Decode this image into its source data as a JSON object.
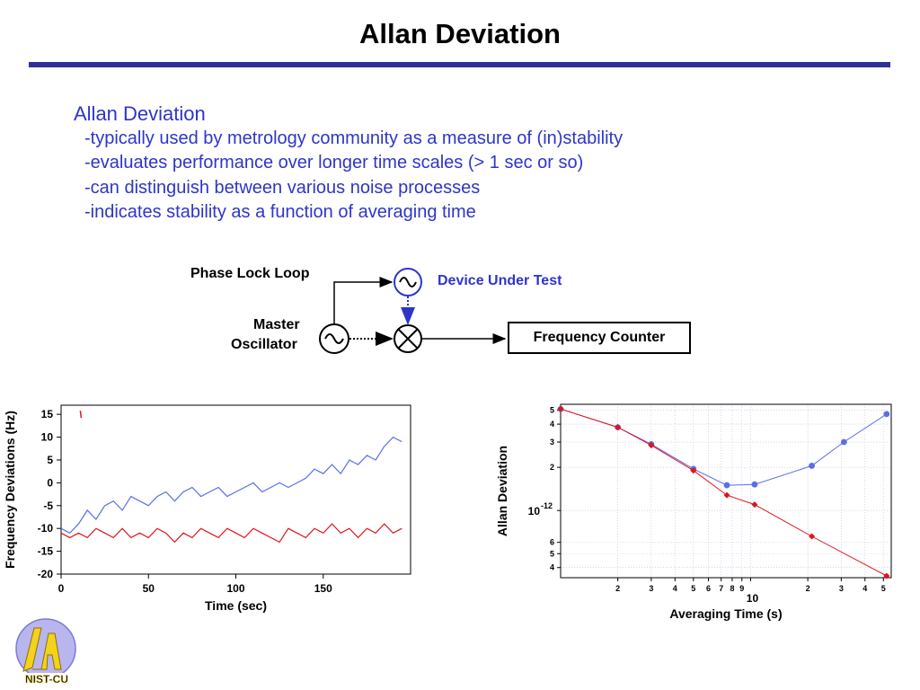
{
  "slide": {
    "title": "Allan Deviation"
  },
  "bullets": {
    "heading": "Allan Deviation",
    "items": [
      "-typically used by metrology community as a measure of (in)stability",
      "-evaluates performance over longer time scales (> 1 sec or so)",
      "-can distinguish between various noise processes",
      "-indicates stability as a function of averaging time"
    ]
  },
  "diagram": {
    "pll_label": "Phase Lock Loop",
    "dut_label": "Device Under Test",
    "master_label_line1": "Master",
    "master_label_line2": "Oscillator",
    "counter_label": "Frequency Counter"
  },
  "logo": {
    "text": "NIST-CU"
  },
  "colors": {
    "accent": "#2e3192",
    "text_blue": "#2e35c9",
    "series_blue": "#5a6fe6",
    "series_red": "#e0131b"
  },
  "chart_data": [
    {
      "type": "line",
      "title": "",
      "xlabel": "Time (sec)",
      "ylabel": "Frequency Deviations (Hz)",
      "xlim": [
        0,
        200
      ],
      "ylim": [
        -20,
        17
      ],
      "xticks": [
        0,
        50,
        100,
        150
      ],
      "yticks": [
        15,
        10,
        5,
        0,
        -5,
        -10,
        -15,
        -20
      ],
      "grid": false,
      "series": [
        {
          "color": "#5a6fe6",
          "points": [
            [
              0,
              -10
            ],
            [
              5,
              -11
            ],
            [
              10,
              -9
            ],
            [
              15,
              -6
            ],
            [
              20,
              -8
            ],
            [
              25,
              -5
            ],
            [
              30,
              -4
            ],
            [
              35,
              -6
            ],
            [
              40,
              -3
            ],
            [
              45,
              -4
            ],
            [
              50,
              -5
            ],
            [
              55,
              -3
            ],
            [
              60,
              -2
            ],
            [
              65,
              -4
            ],
            [
              70,
              -2
            ],
            [
              75,
              -1
            ],
            [
              80,
              -3
            ],
            [
              85,
              -2
            ],
            [
              90,
              -1
            ],
            [
              95,
              -3
            ],
            [
              100,
              -2
            ],
            [
              105,
              -1
            ],
            [
              110,
              0
            ],
            [
              115,
              -2
            ],
            [
              120,
              -1
            ],
            [
              125,
              0
            ],
            [
              130,
              -1
            ],
            [
              135,
              0
            ],
            [
              140,
              1
            ],
            [
              145,
              3
            ],
            [
              150,
              2
            ],
            [
              155,
              4
            ],
            [
              160,
              2
            ],
            [
              165,
              5
            ],
            [
              170,
              4
            ],
            [
              175,
              6
            ],
            [
              180,
              5
            ],
            [
              185,
              8
            ],
            [
              190,
              10
            ],
            [
              195,
              9
            ]
          ]
        },
        {
          "color": "#e0131b",
          "points": [
            [
              0,
              -11
            ],
            [
              5,
              -12
            ],
            [
              10,
              -11
            ],
            [
              15,
              -12
            ],
            [
              20,
              -10
            ],
            [
              25,
              -11
            ],
            [
              30,
              -12
            ],
            [
              35,
              -10
            ],
            [
              40,
              -12
            ],
            [
              45,
              -11
            ],
            [
              50,
              -12
            ],
            [
              55,
              -10
            ],
            [
              60,
              -11
            ],
            [
              65,
              -13
            ],
            [
              70,
              -11
            ],
            [
              75,
              -12
            ],
            [
              80,
              -10
            ],
            [
              85,
              -11
            ],
            [
              90,
              -12
            ],
            [
              95,
              -10
            ],
            [
              100,
              -11
            ],
            [
              105,
              -12
            ],
            [
              110,
              -10
            ],
            [
              115,
              -11
            ],
            [
              120,
              -12
            ],
            [
              125,
              -13
            ],
            [
              130,
              -10
            ],
            [
              135,
              -11
            ],
            [
              140,
              -12
            ],
            [
              145,
              -10
            ],
            [
              150,
              -11
            ],
            [
              155,
              -9
            ],
            [
              160,
              -11
            ],
            [
              165,
              -10
            ],
            [
              170,
              -12
            ],
            [
              175,
              -10
            ],
            [
              180,
              -11
            ],
            [
              185,
              -9
            ],
            [
              190,
              -11
            ],
            [
              195,
              -10
            ]
          ]
        }
      ],
      "annotations": [
        {
          "x": 11,
          "y": 15,
          "color": "#e0131b"
        }
      ]
    },
    {
      "type": "line",
      "title": "",
      "xlabel": "Averaging Time (s)",
      "ylabel": "Allan Deviation",
      "xscale": "log",
      "yscale": "log",
      "xlim": [
        1,
        55
      ],
      "ylim": [
        3.4e-13,
        5.5e-12
      ],
      "x_tick_labels": [
        {
          "v": 2,
          "t": "2"
        },
        {
          "v": 3,
          "t": "3"
        },
        {
          "v": 4,
          "t": "4"
        },
        {
          "v": 5,
          "t": "5"
        },
        {
          "v": 6,
          "t": "6"
        },
        {
          "v": 7,
          "t": "7"
        },
        {
          "v": 8,
          "t": "8"
        },
        {
          "v": 9,
          "t": "9"
        },
        {
          "v": 20,
          "t": "2"
        },
        {
          "v": 30,
          "t": "3"
        },
        {
          "v": 40,
          "t": "4"
        },
        {
          "v": 50,
          "t": "5"
        }
      ],
      "x_decade_label": "10",
      "y_tick_labels": [
        {
          "v": 5e-12,
          "t": "5"
        },
        {
          "v": 4e-12,
          "t": "4"
        },
        {
          "v": 3e-12,
          "t": "3"
        },
        {
          "v": 2e-12,
          "t": "2"
        },
        {
          "v": 6e-13,
          "t": "6"
        },
        {
          "v": 5e-13,
          "t": "5"
        },
        {
          "v": 4e-13,
          "t": "4"
        }
      ],
      "y_decade_label": "10",
      "y_decade_exponent": "-12",
      "grid": true,
      "series": [
        {
          "color": "#5a6fe6",
          "marker": "circle",
          "points": [
            [
              1,
              5.1e-12
            ],
            [
              2,
              3.8e-12
            ],
            [
              3,
              2.9e-12
            ],
            [
              5,
              1.95e-12
            ],
            [
              7.5,
              1.5e-12
            ],
            [
              10.5,
              1.52e-12
            ],
            [
              21,
              2.05e-12
            ],
            [
              31,
              3e-12
            ],
            [
              52,
              4.7e-12
            ]
          ]
        },
        {
          "color": "#e0131b",
          "marker": "diamond",
          "points": [
            [
              1,
              5.1e-12
            ],
            [
              2,
              3.8e-12
            ],
            [
              3,
              2.85e-12
            ],
            [
              5,
              1.9e-12
            ],
            [
              7.5,
              1.28e-12
            ],
            [
              10.5,
              1.1e-12
            ],
            [
              21,
              6.6e-13
            ],
            [
              52,
              3.5e-13
            ]
          ]
        }
      ]
    }
  ]
}
